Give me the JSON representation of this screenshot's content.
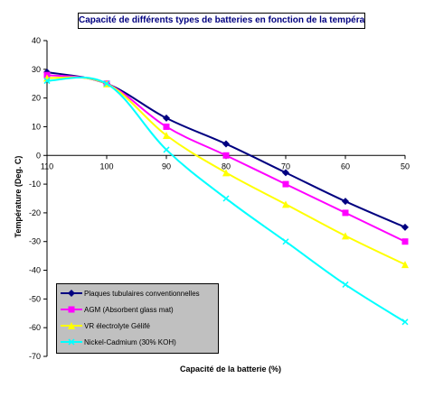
{
  "chart_data": {
    "type": "line",
    "title": "Capacité de différents types de batteries en fonction de la température",
    "xlabel": "Capacité de la batterie (%)",
    "ylabel": "Température (Deg. C)",
    "x": [
      "110",
      "100",
      "90",
      "80",
      "70",
      "60",
      "50"
    ],
    "ylim": [
      -70,
      40
    ],
    "yticks": [
      "40",
      "30",
      "20",
      "10",
      "0",
      "-10",
      "-20",
      "-30",
      "-40",
      "-50",
      "-60",
      "-70"
    ],
    "grid": false,
    "legend_position": "bottom-left",
    "series": [
      {
        "name": "Plaques tubulaires conventionnelles",
        "color": "#000080",
        "marker": "diamond",
        "values": [
          29,
          25,
          13,
          4,
          -6,
          -16,
          -25
        ]
      },
      {
        "name": "AGM (Absorbent glass mat)",
        "color": "#ff00ff",
        "marker": "square",
        "values": [
          28,
          25,
          10,
          0,
          -10,
          -20,
          -30
        ]
      },
      {
        "name": "VR électrolyte Gélifé",
        "color": "#ffff00",
        "marker": "triangle",
        "values": [
          27,
          25,
          7,
          -6,
          -17,
          -28,
          -38
        ]
      },
      {
        "name": "Nickel-Cadmium (30% KOH)",
        "color": "#00ffff",
        "marker": "x",
        "values": [
          26,
          25,
          2,
          -15,
          -30,
          -45,
          -58
        ]
      }
    ]
  }
}
